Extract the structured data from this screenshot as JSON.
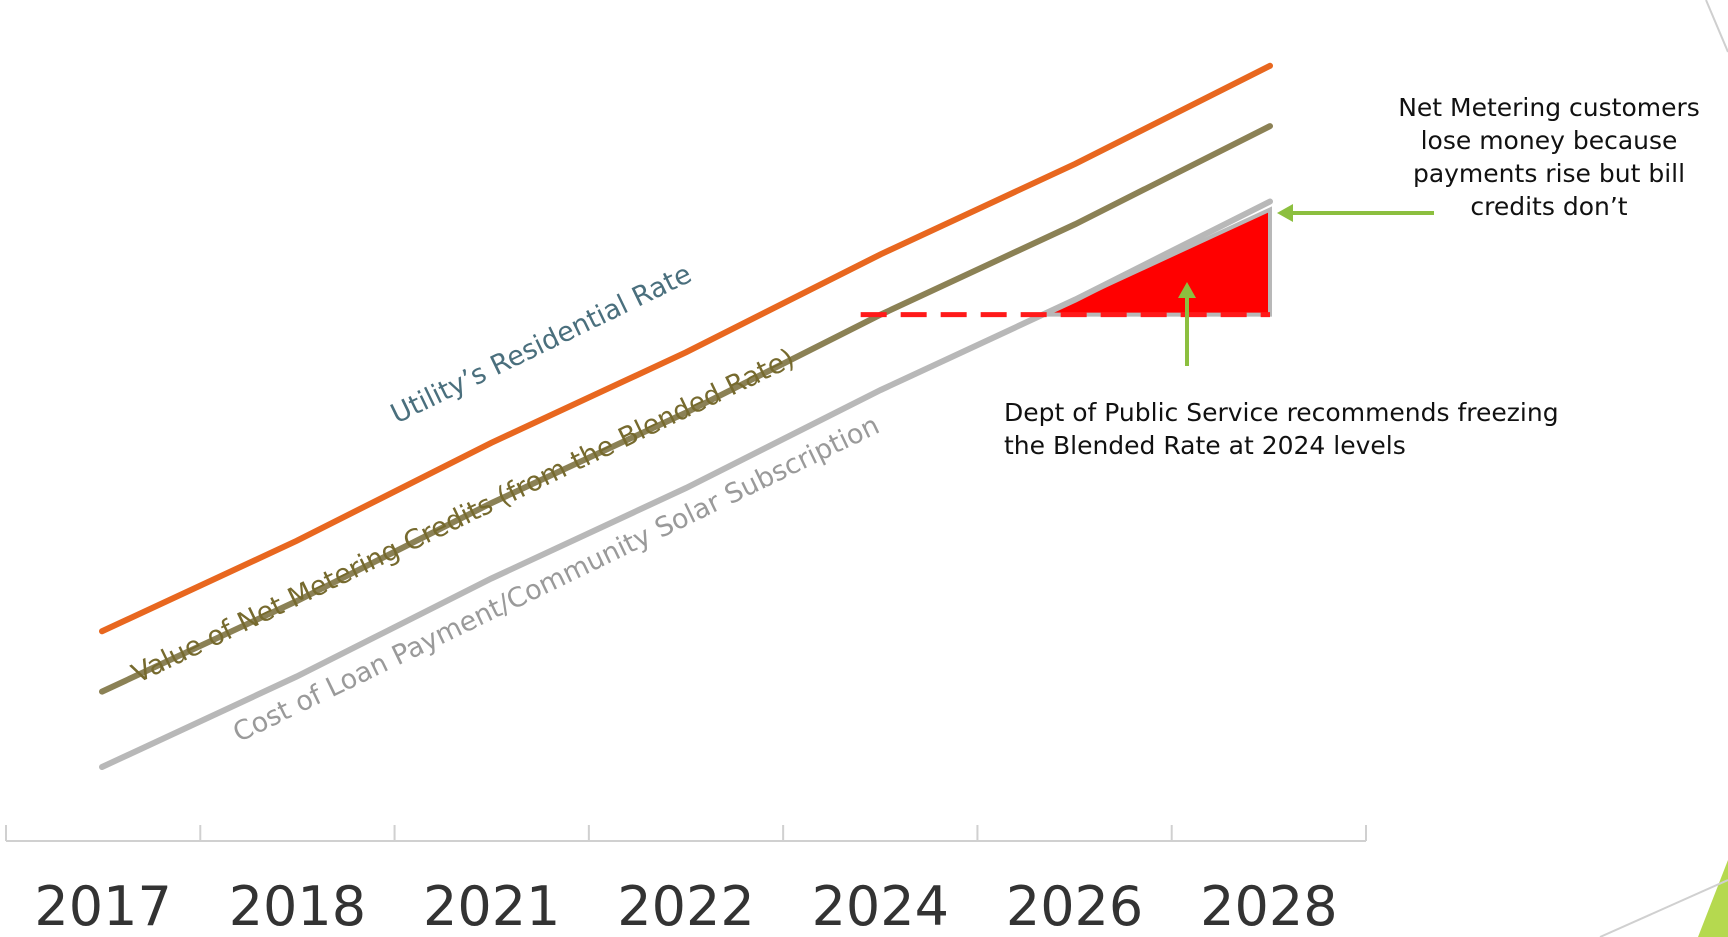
{
  "chart_data": {
    "type": "line",
    "title": "",
    "xlabel": "",
    "ylabel": "",
    "categories": [
      "2017",
      "2018",
      "2021",
      "2022",
      "2024",
      "2026",
      "2028"
    ],
    "ylim": [
      0,
      100
    ],
    "grid": false,
    "legend": "none",
    "series": [
      {
        "name": "Utility’s Residential Rate",
        "color": "#e8671f",
        "label_color": "#4a6f7d",
        "values": [
          18,
          30,
          43,
          55,
          68,
          80,
          93
        ]
      },
      {
        "name": "Value of Net Metering Credits (from the Blended Rate)",
        "color": "#8b8155",
        "label_color": "#766a2e",
        "values": [
          10,
          22,
          35,
          47,
          60,
          72,
          85
        ]
      },
      {
        "name": "Cost of Loan Payment/Community Solar Subscription",
        "color": "#b8b8b8",
        "label_color": "#9a9a9a",
        "values": [
          0,
          12,
          25,
          37,
          50,
          62,
          75
        ]
      }
    ],
    "frozen_blended_rate": {
      "from": "2024",
      "to": "2028",
      "value": 60,
      "color": "#ff1a1a"
    },
    "loss_area_color": "#ff0000",
    "arrow_color": "#8cbf3f"
  },
  "annotations": {
    "loss": "Net Metering customers lose money because payments rise but bill credits don’t",
    "freeze": "Dept of Public Service recommends freezing the Blended Rate at 2024 levels"
  }
}
